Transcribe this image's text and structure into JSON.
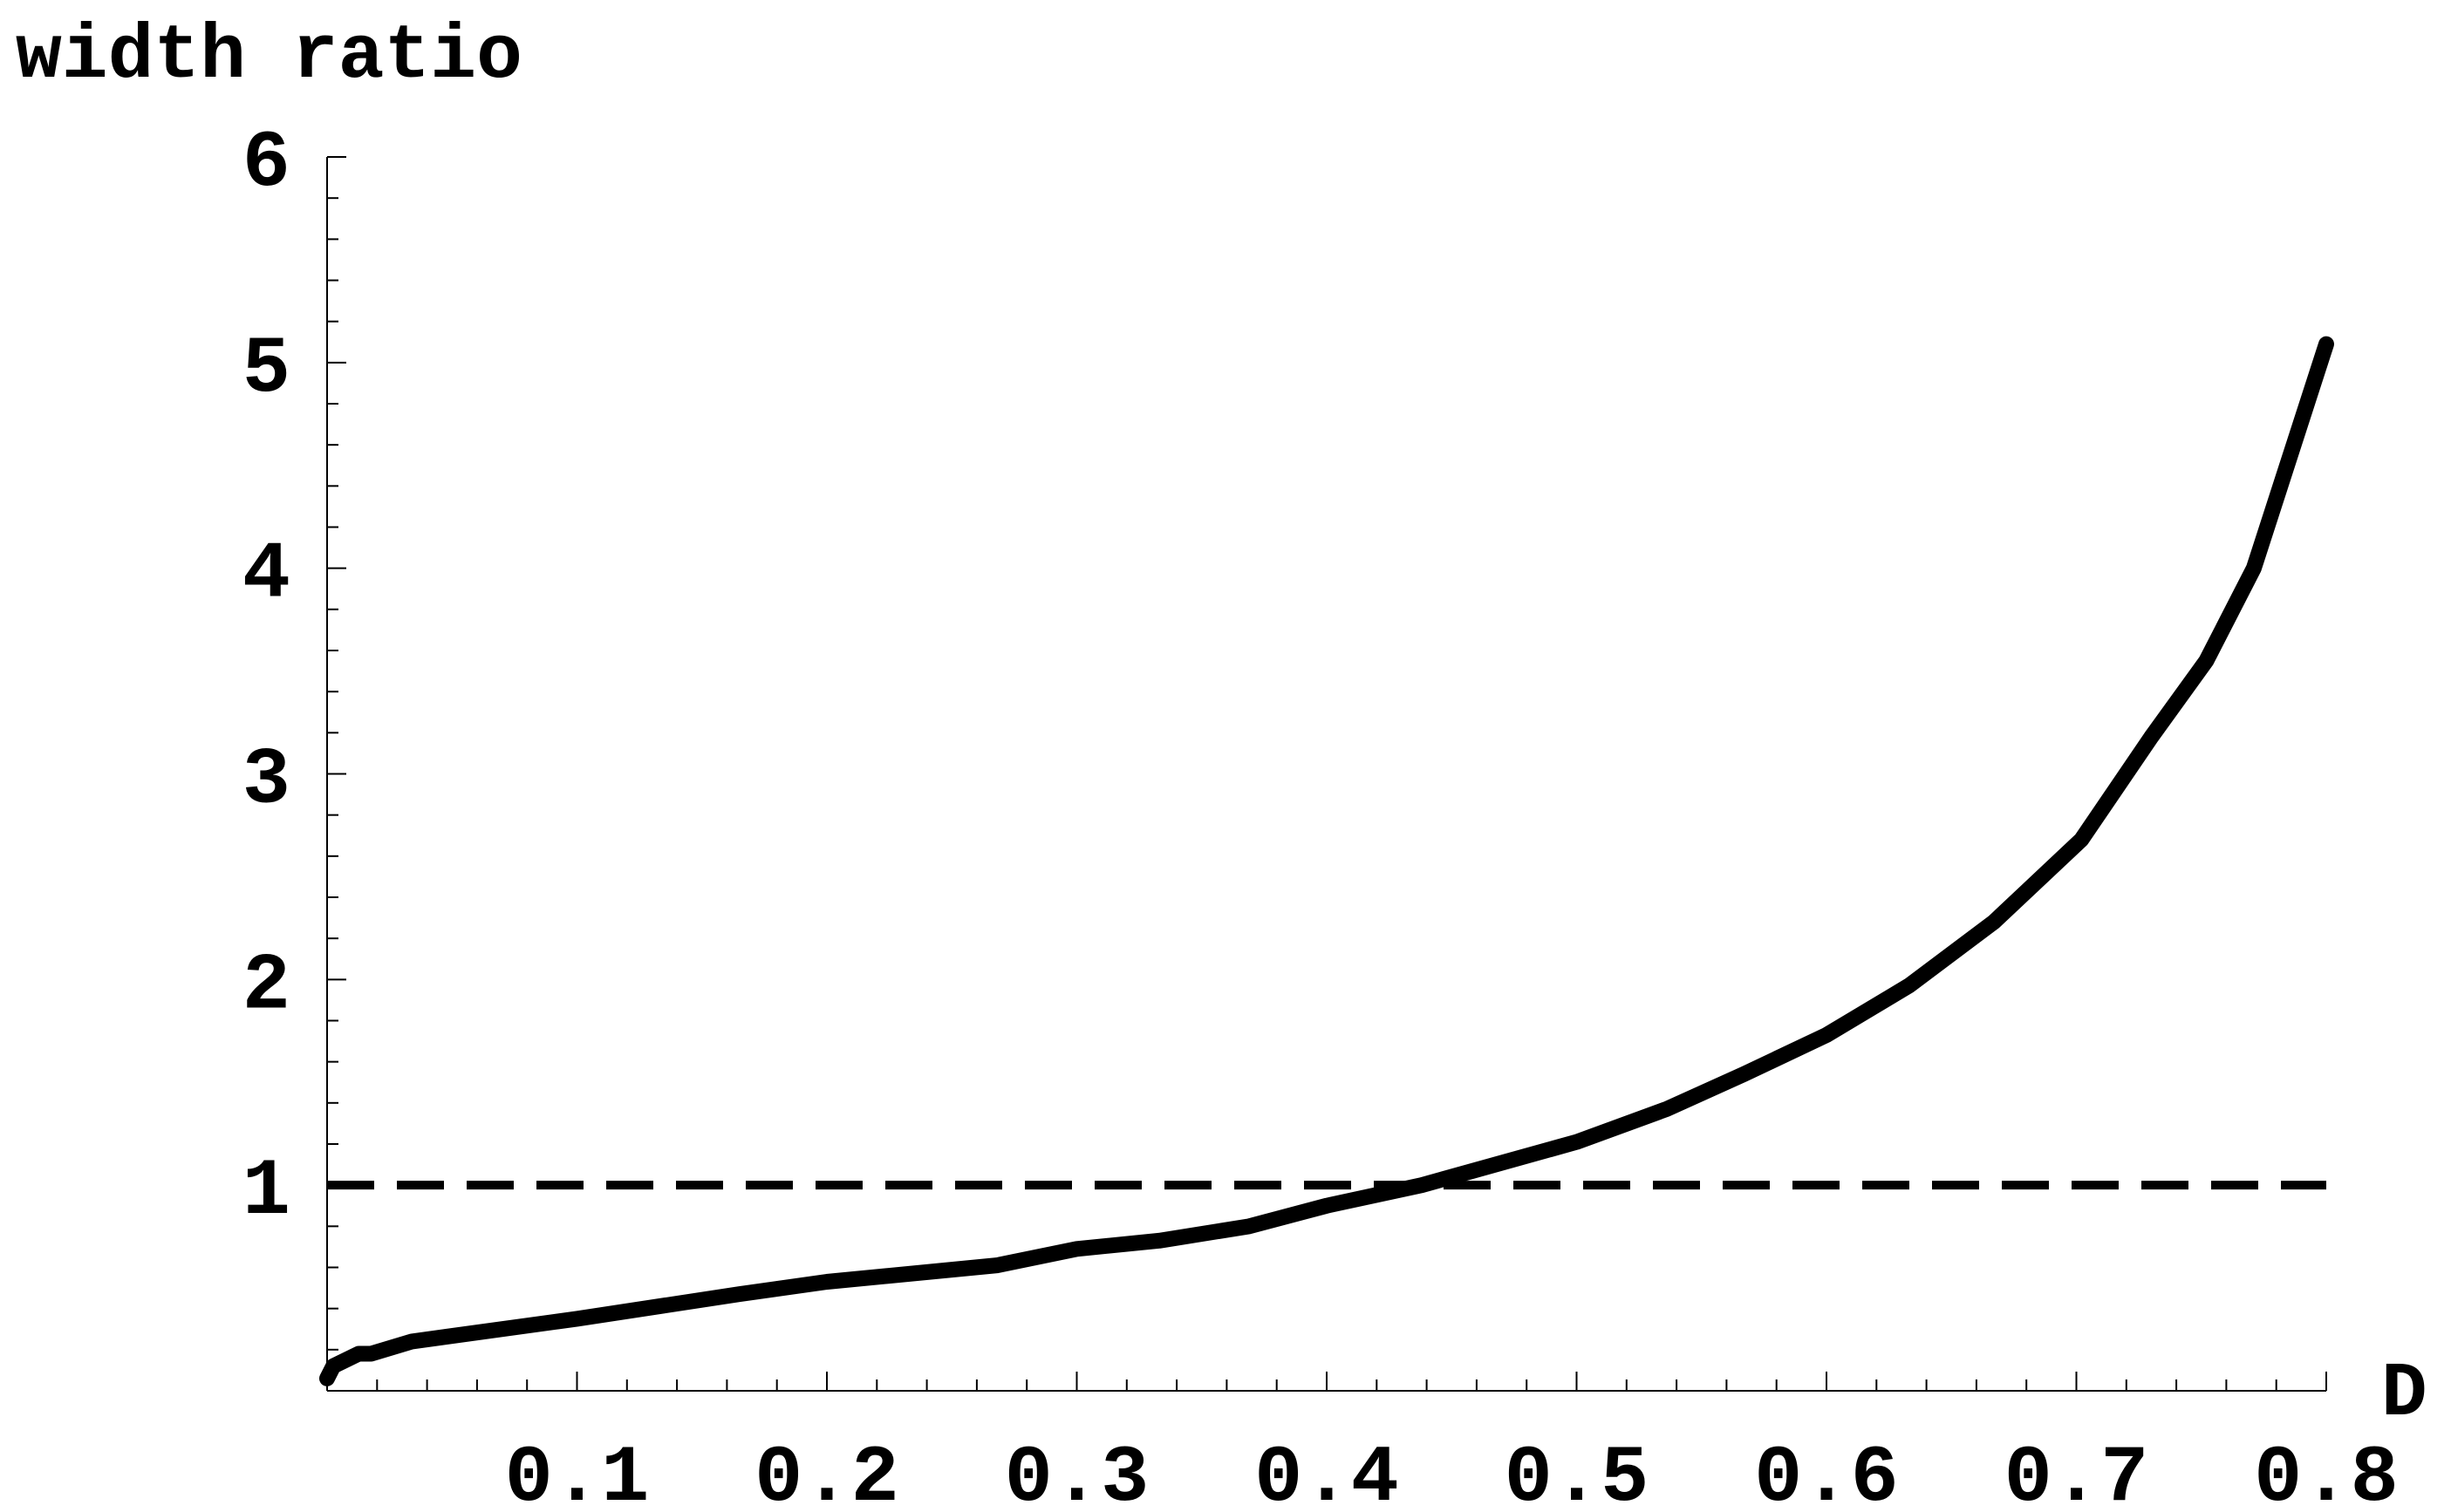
{
  "chart_data": {
    "type": "line",
    "y_label": "width ratio",
    "x_label": "D",
    "xlim": [
      0,
      0.8
    ],
    "ylim": [
      0,
      6
    ],
    "xticks": [
      0.1,
      0.2,
      0.3,
      0.4,
      0.5,
      0.6,
      0.7,
      0.8
    ],
    "yticks": [
      1,
      2,
      3,
      4,
      5,
      6
    ],
    "xminorticks": [
      0.02,
      0.04,
      0.06,
      0.08,
      0.12,
      0.14,
      0.16,
      0.18,
      0.22,
      0.24,
      0.26,
      0.28,
      0.32,
      0.34,
      0.36,
      0.38,
      0.42,
      0.44,
      0.46,
      0.48,
      0.52,
      0.54,
      0.56,
      0.58,
      0.62,
      0.64,
      0.66,
      0.68,
      0.72,
      0.74,
      0.76,
      0.78
    ],
    "yminorticks": [
      0.2,
      0.4,
      0.6,
      0.8,
      1.2,
      1.4,
      1.6,
      1.8,
      2.2,
      2.4,
      2.6,
      2.8,
      3.2,
      3.4,
      3.6,
      3.8,
      4.2,
      4.4,
      4.6,
      4.8,
      5.2,
      5.4,
      5.6,
      5.8
    ],
    "series": [
      {
        "color": "#000000",
        "dash": false,
        "x": [
          0,
          0.0025,
          0.0126,
          0.0176,
          0.034,
          0.1,
          0.165,
          0.2,
          0.268,
          0.3,
          0.333,
          0.369,
          0.4,
          0.438,
          0.5,
          0.536,
          0.567,
          0.6,
          0.633,
          0.667,
          0.702,
          0.73,
          0.752,
          0.771,
          0.8
        ],
        "values": [
          0.06,
          0.12,
          0.18,
          0.18,
          0.24,
          0.35,
          0.47,
          0.53,
          0.61,
          0.69,
          0.73,
          0.8,
          0.9,
          1.0,
          1.21,
          1.37,
          1.54,
          1.73,
          1.97,
          2.28,
          2.68,
          3.18,
          3.55,
          4.0,
          5.09
        ]
      },
      {
        "color": "#000000",
        "dash": true,
        "x": [
          0,
          0.8
        ],
        "values": [
          1,
          1
        ]
      }
    ]
  }
}
